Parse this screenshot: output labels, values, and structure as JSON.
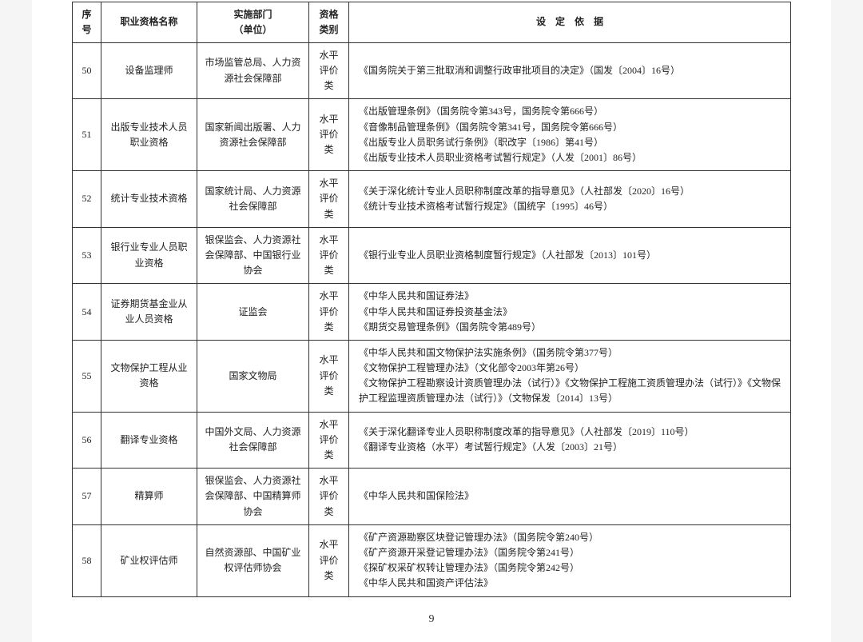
{
  "page_number": "9",
  "header": {
    "seq": "序号",
    "name": "职业资格名称",
    "dept_line1": "实施部门",
    "dept_line2": "（单位）",
    "cat_line1": "资格",
    "cat_line2": "类别",
    "basis": "设　定　依　据"
  },
  "rows": [
    {
      "seq": "50",
      "name": "设备监理师",
      "dept": "市场监管总局、人力资源社会保障部",
      "cat": "水平评价类",
      "basis": [
        "《国务院关于第三批取消和调整行政审批项目的决定》（国发〔2004〕16号）"
      ]
    },
    {
      "seq": "51",
      "name": "出版专业技术人员职业资格",
      "dept": "国家新闻出版署、人力资源社会保障部",
      "cat": "水平评价类",
      "basis": [
        "《出版管理条例》（国务院令第343号，国务院令第666号）",
        "《音像制品管理条例》（国务院令第341号，国务院令第666号）",
        "《出版专业人员职务试行条例》（职改字〔1986〕第41号）",
        "《出版专业技术人员职业资格考试暂行规定》（人发〔2001〕86号）"
      ]
    },
    {
      "seq": "52",
      "name": "统计专业技术资格",
      "dept": "国家统计局、人力资源社会保障部",
      "cat": "水平评价类",
      "basis": [
        "《关于深化统计专业人员职称制度改革的指导意见》（人社部发〔2020〕16号）",
        "《统计专业技术资格考试暂行规定》（国统字〔1995〕46号）"
      ]
    },
    {
      "seq": "53",
      "name": "银行业专业人员职业资格",
      "dept": "银保监会、人力资源社会保障部、中国银行业协会",
      "cat": "水平评价类",
      "basis": [
        "《银行业专业人员职业资格制度暂行规定》（人社部发〔2013〕101号）"
      ]
    },
    {
      "seq": "54",
      "name": "证券期货基金业从业人员资格",
      "dept": "证监会",
      "cat": "水平评价类",
      "basis": [
        "《中华人民共和国证券法》",
        "《中华人民共和国证券投资基金法》",
        "《期货交易管理条例》（国务院令第489号）"
      ]
    },
    {
      "seq": "55",
      "name": "文物保护工程从业资格",
      "dept": "国家文物局",
      "cat": "水平评价类",
      "basis": [
        "《中华人民共和国文物保护法实施条例》（国务院令第377号）",
        "《文物保护工程管理办法》（文化部令2003年第26号）",
        "《文物保护工程勘察设计资质管理办法（试行）》《文物保护工程施工资质管理办法（试行）》《文物保护工程监理资质管理办法（试行）》（文物保发〔2014〕13号）"
      ]
    },
    {
      "seq": "56",
      "name": "翻译专业资格",
      "dept": "中国外文局、人力资源社会保障部",
      "cat": "水平评价类",
      "basis": [
        "《关于深化翻译专业人员职称制度改革的指导意见》（人社部发〔2019〕110号）",
        "《翻译专业资格（水平）考试暂行规定》（人发〔2003〕21号）"
      ]
    },
    {
      "seq": "57",
      "name": "精算师",
      "dept": "银保监会、人力资源社会保障部、中国精算师协会",
      "cat": "水平评价类",
      "basis": [
        "《中华人民共和国保险法》"
      ]
    },
    {
      "seq": "58",
      "name": "矿业权评估师",
      "dept": "自然资源部、中国矿业权评估师协会",
      "cat": "水平评价类",
      "basis": [
        "《矿产资源勘察区块登记管理办法》（国务院令第240号）",
        "《矿产资源开采登记管理办法》（国务院令第241号）",
        "《探矿权采矿权转让管理办法》（国务院令第242号）",
        "《中华人民共和国资产评估法》"
      ]
    }
  ]
}
